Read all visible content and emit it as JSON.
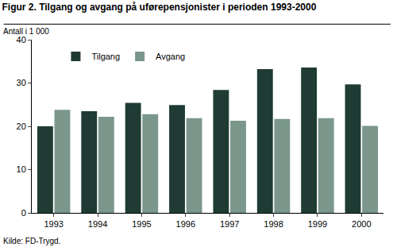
{
  "chart_data": {
    "type": "bar",
    "title": "Figur 2. Tilgang og avgang på uførepensjonister i perioden 1993-2000",
    "ylabel": "Antall i 1 000",
    "source": "Kilde: FD-Trygd.",
    "categories": [
      "1993",
      "1994",
      "1995",
      "1996",
      "1997",
      "1998",
      "1999",
      "2000"
    ],
    "series": [
      {
        "name": "Tilgang",
        "color": "#1f3b33",
        "values": [
          20.0,
          23.5,
          25.4,
          24.9,
          28.4,
          33.2,
          33.6,
          29.7
        ]
      },
      {
        "name": "Avgang",
        "color": "#7b978c",
        "values": [
          23.8,
          22.2,
          22.8,
          21.9,
          21.3,
          21.7,
          21.9,
          20.1
        ]
      }
    ],
    "ylim": [
      0,
      40
    ],
    "yticks": [
      0,
      10,
      20,
      30,
      40
    ],
    "grid": false,
    "legend": "upper left"
  }
}
